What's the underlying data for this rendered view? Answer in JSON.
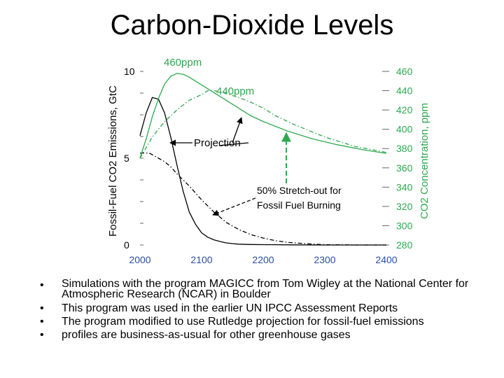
{
  "slide": {
    "title": "Carbon-Dioxide Levels",
    "bullets": [
      "Simulations with the program MAGICC from Tom Wigley at the National Center for Atmospheric Research (NCAR) in Boulder",
      "This program was used in the earlier UN IPCC Assessment Reports",
      "The program modified to use Rutledge projection for fossil-fuel emissions",
      "profiles are business-as-usual for other greenhouse gases"
    ],
    "bullet_symbol": "•"
  },
  "chart_data": {
    "type": "line",
    "xlabel": "",
    "ylabel_left": "Fossil-Fuel CO2 Emissions, GtC",
    "ylabel_right": "CO2 Concentration, ppm",
    "x_ticks": [
      2000,
      2100,
      2200,
      2300,
      2400
    ],
    "xlim": [
      2000,
      2400
    ],
    "left_ticks": [
      0,
      5,
      10
    ],
    "ylim_left": [
      0,
      10
    ],
    "right_ticks": [
      280,
      300,
      320,
      340,
      360,
      380,
      400,
      420,
      440,
      460
    ],
    "ylim_right": [
      280,
      460
    ],
    "grid": false,
    "colors": {
      "emissions": "#000000",
      "concentration": "#2fa84f",
      "tick_green": "#2fa84f",
      "tick_blue": "#2b4fa0",
      "annotation_arrow": "#2fa84f"
    },
    "series": [
      {
        "axis": "left",
        "color": "#000000",
        "style": "solid",
        "x": [
          2000,
          2010,
          2020,
          2030,
          2040,
          2050,
          2060,
          2070,
          2080,
          2090,
          2100,
          2110,
          2120,
          2130,
          2140,
          2150,
          2160,
          2180,
          2200,
          2250,
          2300,
          2350,
          2400
        ],
        "y": [
          6.3,
          7.6,
          8.5,
          8.4,
          7.6,
          6.2,
          4.6,
          3.1,
          1.9,
          1.2,
          0.7,
          0.45,
          0.3,
          0.2,
          0.12,
          0.08,
          0.05,
          0.03,
          0.02,
          0.01,
          0.0,
          0.0,
          0.0
        ]
      },
      {
        "axis": "left",
        "color": "#000000",
        "style": "dashed",
        "x": [
          2000,
          2015,
          2030,
          2040,
          2050,
          2060,
          2080,
          2100,
          2120,
          2140,
          2160,
          2180,
          2200,
          2220,
          2240,
          2260,
          2280,
          2300,
          2350,
          2400
        ],
        "y": [
          5.3,
          5.3,
          5.0,
          4.8,
          4.5,
          4.1,
          3.4,
          2.6,
          1.9,
          1.3,
          0.9,
          0.6,
          0.4,
          0.25,
          0.15,
          0.1,
          0.05,
          0.02,
          0.0,
          0.0
        ]
      },
      {
        "axis": "right",
        "color": "#2fa84f",
        "style": "solid",
        "x": [
          2000,
          2010,
          2020,
          2030,
          2040,
          2050,
          2060,
          2070,
          2080,
          2090,
          2100,
          2120,
          2140,
          2160,
          2180,
          2200,
          2240,
          2280,
          2320,
          2360,
          2400
        ],
        "y": [
          370,
          390,
          413,
          432,
          447,
          455,
          458,
          457,
          454,
          450,
          446,
          438,
          430,
          422,
          414,
          408,
          398,
          390,
          384,
          379,
          375
        ]
      },
      {
        "axis": "right",
        "color": "#2fa84f",
        "style": "dashed",
        "x": [
          2000,
          2020,
          2040,
          2060,
          2080,
          2100,
          2110,
          2120,
          2130,
          2140,
          2160,
          2180,
          2200,
          2220,
          2250,
          2300,
          2350,
          2400
        ],
        "y": [
          370,
          392,
          408,
          420,
          430,
          436,
          440,
          440,
          439,
          437,
          433,
          428,
          422,
          414,
          405,
          392,
          382,
          376
        ]
      }
    ],
    "annotations": [
      {
        "text": "460ppm"
      },
      {
        "text": "440ppm"
      },
      {
        "text": "Projection"
      },
      {
        "text": "50% Stretch-out for"
      },
      {
        "text": "Fossil Fuel Burning"
      }
    ]
  }
}
